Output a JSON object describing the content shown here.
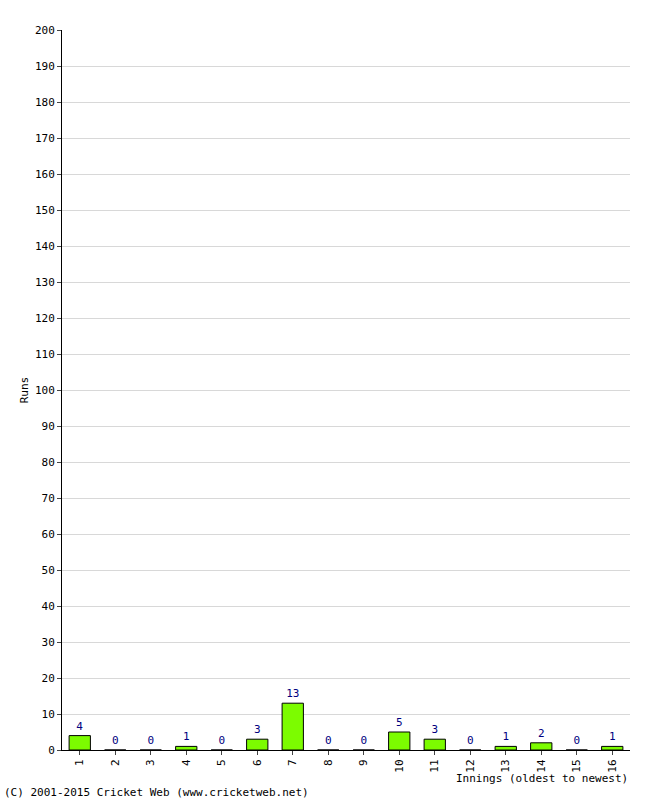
{
  "chart_data": {
    "type": "bar",
    "categories": [
      "1",
      "2",
      "3",
      "4",
      "5",
      "6",
      "7",
      "8",
      "9",
      "10",
      "11",
      "12",
      "13",
      "14",
      "15",
      "16"
    ],
    "values": [
      4,
      0,
      0,
      1,
      0,
      3,
      13,
      0,
      0,
      5,
      3,
      0,
      1,
      2,
      0,
      1
    ],
    "color": "#7cfc00",
    "ylabel": "Runs",
    "xlabel": "Innings (oldest to newest)",
    "annotations": [
      "(C) 2001-2015 Cricket Web (www.cricketweb.net)"
    ],
    "ylim": [
      0,
      200
    ],
    "yticks": [
      0,
      10,
      20,
      30,
      40,
      50,
      60,
      70,
      80,
      90,
      100,
      110,
      120,
      130,
      140,
      150,
      160,
      170,
      180,
      190,
      200
    ],
    "grid": true,
    "data_labels": true
  }
}
